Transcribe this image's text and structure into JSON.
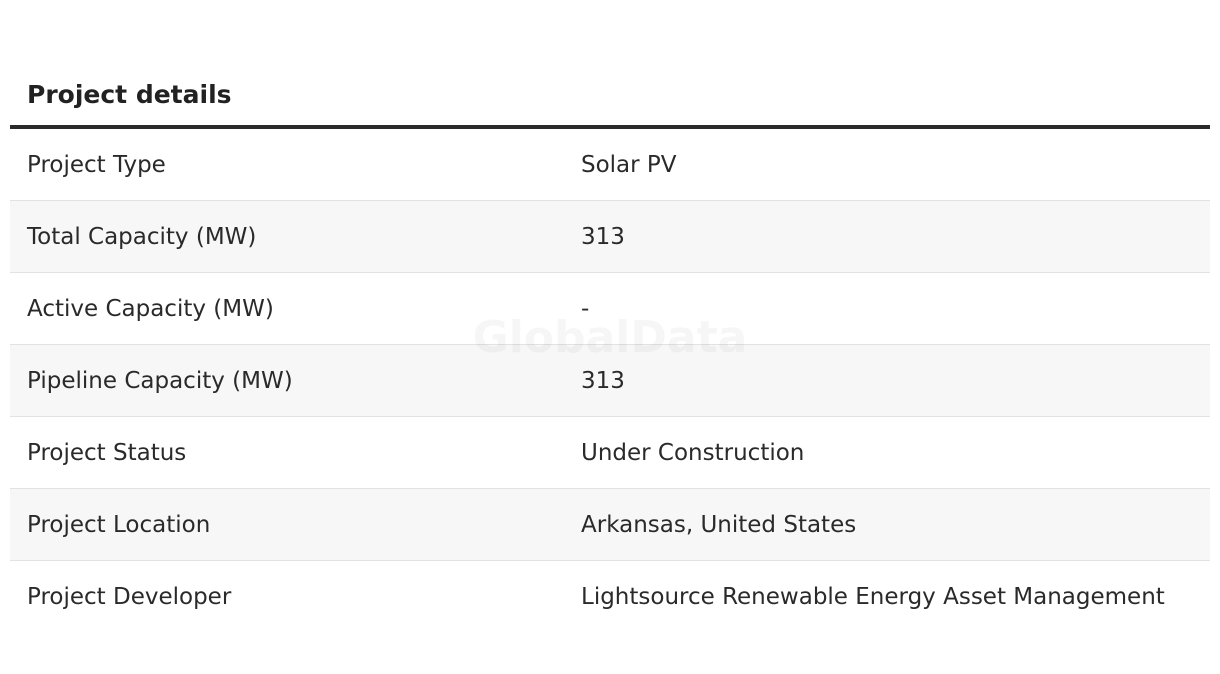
{
  "header": {
    "title": "Project details"
  },
  "watermark": "GlobalData",
  "table": {
    "rows": [
      [
        "Project Type",
        "Solar PV"
      ],
      [
        "Total Capacity (MW)",
        "313"
      ],
      [
        "Active Capacity (MW)",
        "-"
      ],
      [
        "Pipeline Capacity (MW)",
        "313"
      ],
      [
        "Project Status",
        "Under Construction"
      ],
      [
        "Project Location",
        "Arkansas, United States"
      ],
      [
        "Project Developer",
        "Lightsource Renewable Energy Asset Management"
      ]
    ]
  }
}
